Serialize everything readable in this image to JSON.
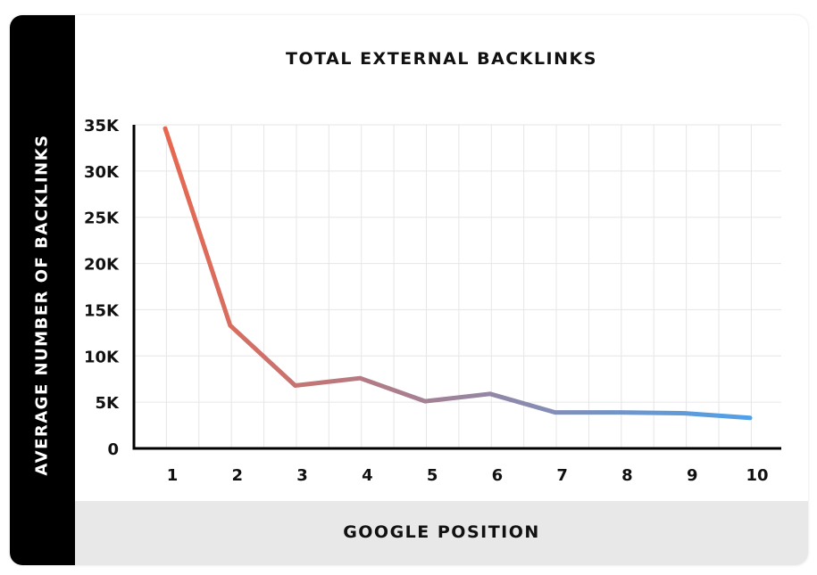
{
  "chart_data": {
    "type": "line",
    "title": "TOTAL EXTERNAL BACKLINKS",
    "xlabel": "GOOGLE POSITION",
    "ylabel": "AVERAGE NUMBER OF BACKLINKS",
    "x": [
      1,
      2,
      3,
      4,
      5,
      6,
      7,
      8,
      9,
      10
    ],
    "y": [
      34600,
      13300,
      6800,
      7600,
      5100,
      5900,
      3900,
      3900,
      3800,
      3300
    ],
    "ylim": [
      0,
      35000
    ],
    "xlim": [
      1,
      10
    ],
    "y_ticks": [
      0,
      5000,
      10000,
      15000,
      20000,
      25000,
      30000,
      35000
    ],
    "y_tick_labels": [
      "0",
      "5K",
      "10K",
      "15K",
      "20K",
      "25K",
      "30K",
      "35K"
    ],
    "x_tick_labels": [
      "1",
      "2",
      "3",
      "4",
      "5",
      "6",
      "7",
      "8",
      "9",
      "10"
    ],
    "grid": true,
    "legend": "none",
    "line_gradient": [
      "#e8674f",
      "#4fa1ea"
    ]
  }
}
